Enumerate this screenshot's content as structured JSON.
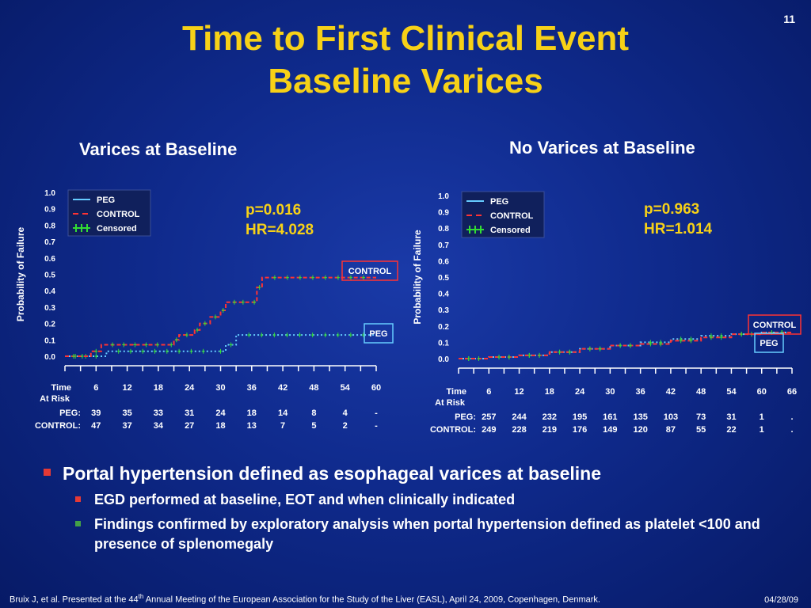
{
  "slide_number": "11",
  "title_line1": "Time to First Clinical Event",
  "title_line2": "Baseline Varices",
  "chart_data": [
    {
      "type": "line",
      "title": "Varices at Baseline",
      "ylabel": "Probability of Failure",
      "xlabel": "",
      "ylim": [
        0,
        1.0
      ],
      "xlim": [
        0,
        60
      ],
      "yticks": [
        "0.0",
        "0.1",
        "0.2",
        "0.3",
        "0.4",
        "0.5",
        "0.6",
        "0.7",
        "0.8",
        "0.9",
        "1.0"
      ],
      "legend": {
        "placement": "top-left",
        "entries": [
          "PEG",
          "CONTROL",
          "Censored"
        ]
      },
      "p_value": "p=0.016",
      "hr": "HR=4.028",
      "control_label": "CONTROL",
      "peg_label": "PEG",
      "series": [
        {
          "name": "PEG",
          "color": "#66ccff",
          "style": "dotted",
          "x": [
            0,
            8,
            29,
            31,
            33,
            60
          ],
          "y": [
            0.0,
            0.03,
            0.03,
            0.07,
            0.13,
            0.13
          ]
        },
        {
          "name": "CONTROL",
          "color": "#ff3333",
          "style": "dashed",
          "x": [
            0,
            5,
            7,
            20,
            21,
            22,
            25,
            26,
            28,
            30,
            31,
            36,
            37,
            38,
            60
          ],
          "y": [
            0.0,
            0.03,
            0.07,
            0.07,
            0.1,
            0.13,
            0.16,
            0.2,
            0.24,
            0.28,
            0.33,
            0.33,
            0.42,
            0.48,
            0.48
          ]
        }
      ],
      "risk_table": {
        "times": [
          "6",
          "12",
          "18",
          "24",
          "30",
          "36",
          "42",
          "48",
          "54",
          "60"
        ],
        "rows": [
          {
            "label": "PEG:",
            "values": [
              "39",
              "35",
              "33",
              "31",
              "24",
              "18",
              "14",
              "8",
              "4",
              "-"
            ]
          },
          {
            "label": "CONTROL:",
            "values": [
              "47",
              "37",
              "34",
              "27",
              "18",
              "13",
              "7",
              "5",
              "2",
              "-"
            ]
          }
        ]
      }
    },
    {
      "type": "line",
      "title": "No Varices at Baseline",
      "ylabel": "Probability of Failure",
      "xlabel": "",
      "ylim": [
        0,
        1.0
      ],
      "xlim": [
        0,
        66
      ],
      "yticks": [
        "0.0",
        "0.1",
        "0.2",
        "0.3",
        "0.4",
        "0.5",
        "0.6",
        "0.7",
        "0.8",
        "0.9",
        "1.0"
      ],
      "legend": {
        "placement": "top-left",
        "entries": [
          "PEG",
          "CONTROL",
          "Censored"
        ]
      },
      "p_value": "p=0.963",
      "hr": "HR=1.014",
      "control_label": "CONTROL",
      "peg_label": "PEG",
      "series": [
        {
          "name": "PEG",
          "color": "#66ccff",
          "style": "dotted",
          "x": [
            0,
            6,
            12,
            18,
            24,
            30,
            36,
            42,
            48,
            54,
            60,
            66
          ],
          "y": [
            0.0,
            0.01,
            0.02,
            0.04,
            0.06,
            0.08,
            0.1,
            0.12,
            0.14,
            0.15,
            0.16,
            0.16
          ]
        },
        {
          "name": "CONTROL",
          "color": "#ff3333",
          "style": "dashed",
          "x": [
            0,
            6,
            12,
            18,
            24,
            30,
            36,
            42,
            48,
            54,
            60,
            66
          ],
          "y": [
            0.0,
            0.01,
            0.02,
            0.04,
            0.06,
            0.08,
            0.09,
            0.11,
            0.13,
            0.15,
            0.16,
            0.16
          ]
        }
      ],
      "risk_table": {
        "times": [
          "6",
          "12",
          "18",
          "24",
          "30",
          "36",
          "42",
          "48",
          "54",
          "60",
          "66"
        ],
        "rows": [
          {
            "label": "PEG:",
            "values": [
              "257",
              "244",
              "232",
              "195",
              "161",
              "135",
              "103",
              "73",
              "31",
              "1",
              "."
            ]
          },
          {
            "label": "CONTROL:",
            "values": [
              "249",
              "228",
              "219",
              "176",
              "149",
              "120",
              "87",
              "55",
              "22",
              "1",
              "."
            ]
          }
        ]
      }
    }
  ],
  "risk_table_header_line1": "Time",
  "risk_table_header_line2": "At Risk",
  "bullets": {
    "main": "Portal hypertension defined as esophageal varices at baseline",
    "sub1": "EGD performed at baseline, EOT and when clinically indicated",
    "sub2": "Findings confirmed by exploratory analysis when portal hypertension defined as platelet <100 and presence of splenomegaly"
  },
  "footer": {
    "pre": "Bruix J, et al. Presented at the 44",
    "sup": "th",
    "post": " Annual Meeting of the European Association for the Study of the Liver (EASL), April 24, 2009, Copenhagen, Denmark.",
    "date": "04/28/09"
  },
  "colors": {
    "title": "#f7d117",
    "peg": "#66ccff",
    "control": "#ff3333",
    "censored": "#33dd33",
    "bullet_main": "#e53935",
    "bullet_sub2": "#43a047"
  }
}
